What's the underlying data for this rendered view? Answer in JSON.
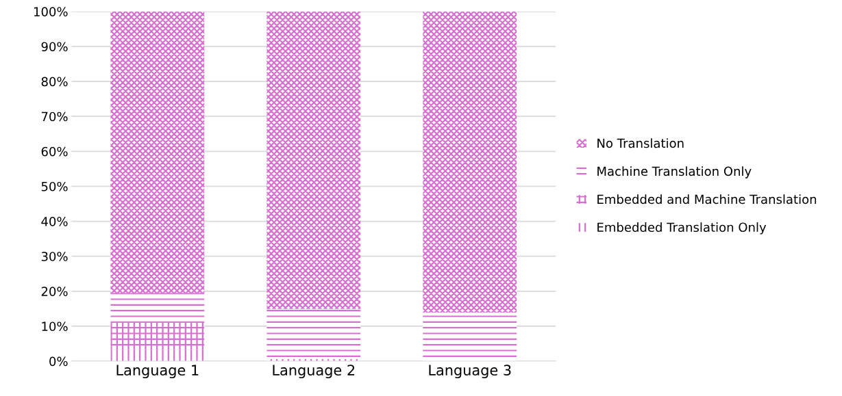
{
  "chart_data": {
    "type": "bar",
    "stacked": true,
    "categories": [
      "Language 1",
      "Language 2",
      "Language 3"
    ],
    "series": [
      {
        "name": "Embedded Translation Only",
        "color": "#d66fcf",
        "values": [
          3.3,
          0.6,
          0
        ]
      },
      {
        "name": "Embedded and Machine Translation",
        "color": "#d66fcf",
        "values": [
          7.9,
          0,
          0
        ]
      },
      {
        "name": "Machine Translation Only",
        "color": "#d66fcf",
        "values": [
          8.3,
          14.3,
          13.9
        ]
      },
      {
        "name": "No Translation",
        "color": "#d66fcf",
        "values": [
          80.5,
          85.1,
          86.1
        ]
      }
    ],
    "ylim": [
      0,
      100
    ],
    "yticks": [
      {
        "value": 0,
        "label": "0%"
      },
      {
        "value": 10,
        "label": "10%"
      },
      {
        "value": 20,
        "label": "20%"
      },
      {
        "value": 30,
        "label": "30%"
      },
      {
        "value": 40,
        "label": "40%"
      },
      {
        "value": 50,
        "label": "50%"
      },
      {
        "value": 60,
        "label": "60%"
      },
      {
        "value": 70,
        "label": "70%"
      },
      {
        "value": 80,
        "label": "80%"
      },
      {
        "value": 90,
        "label": "90%"
      },
      {
        "value": 100,
        "label": "100%"
      }
    ],
    "grid": "y",
    "legend": "right"
  }
}
